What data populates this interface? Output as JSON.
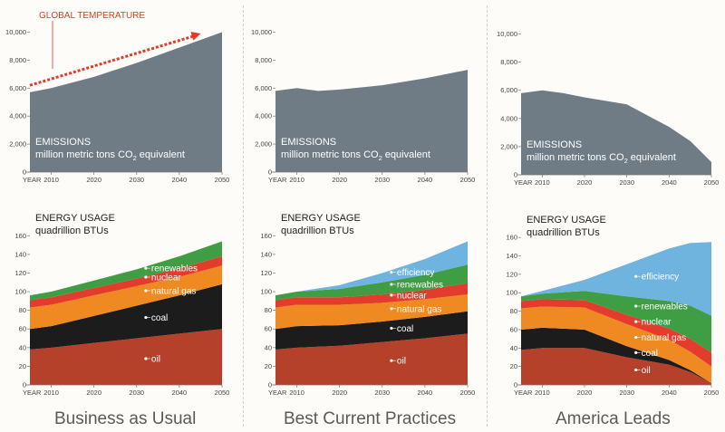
{
  "colors": {
    "emissions": "#6f7c86",
    "oil": "#b5412a",
    "coal": "#1c1c1c",
    "natural_gas": "#ef8a22",
    "nuclear": "#e33b2c",
    "renewables": "#3f9d44",
    "efficiency": "#6fb3df",
    "global_temperature": "#e23a27",
    "page_bg": "#fdfcf8"
  },
  "panels": [
    {
      "footer": "Business as Usual",
      "emissions": {
        "axis_x_word": "YEAR",
        "label_line1": "EMISSIONS",
        "label_line2_pre": "million metric tons CO",
        "label_line2_sub": "2",
        "label_line2_post": " equivalent",
        "annotation": "GLOBAL TEMPERATURE"
      },
      "energy": {
        "axis_x_word": "YEAR",
        "label_line1": "ENERGY USAGE",
        "label_line2": "quadrillion BTUs",
        "layer_labels": {
          "renewables": "renewables",
          "nuclear": "nuclear",
          "natural_gas": "natural gas",
          "coal": "coal",
          "oil": "oil"
        }
      }
    },
    {
      "footer": "Best Current Practices",
      "emissions": {
        "axis_x_word": "YEAR",
        "label_line1": "EMISSIONS",
        "label_line2_pre": "million metric tons CO",
        "label_line2_sub": "2",
        "label_line2_post": " equivalent"
      },
      "energy": {
        "axis_x_word": "YEAR",
        "label_line1": "ENERGY USAGE",
        "label_line2": "quadrillion BTUs",
        "layer_labels": {
          "efficiency": "efficiency",
          "renewables": "renewables",
          "nuclear": "nuclear",
          "natural_gas": "natural gas",
          "coal": "coal",
          "oil": "oil"
        }
      }
    },
    {
      "footer": "America Leads",
      "emissions": {
        "axis_x_word": "YEAR",
        "label_line1": "EMISSIONS",
        "label_line2_pre": "million metric tons CO",
        "label_line2_sub": "2",
        "label_line2_post": " equivalent"
      },
      "energy": {
        "axis_x_word": "YEAR",
        "label_line1": "ENERGY USAGE",
        "label_line2": "quadrillion BTUs",
        "layer_labels": {
          "efficiency": "efficiency",
          "renewables": "renewables",
          "nuclear": "nuclear",
          "natural_gas": "natural gas",
          "coal": "coal",
          "oil": "oil"
        }
      }
    }
  ],
  "chart_data": [
    {
      "type": "area",
      "panel": "Business as Usual",
      "metric": "emissions",
      "x": [
        2005,
        2010,
        2020,
        2030,
        2040,
        2050
      ],
      "series": [
        {
          "name": "EMISSIONS",
          "values": [
            5700,
            6000,
            6800,
            7800,
            8900,
            10000
          ]
        }
      ],
      "annotation_line": {
        "name": "GLOBAL TEMPERATURE",
        "x": [
          2005,
          2045
        ],
        "y": [
          6200,
          9900
        ]
      },
      "xticks": [
        2010,
        2020,
        2030,
        2040,
        2050
      ],
      "yticks": [
        0,
        2000,
        4000,
        6000,
        8000,
        10000
      ],
      "ytick_labels": [
        "0",
        "2,000",
        "4,000",
        "6,000",
        "8,000",
        "10,000"
      ],
      "ylim": [
        0,
        11000
      ],
      "xlim": [
        2005,
        2050
      ]
    },
    {
      "type": "area",
      "panel": "Best Current Practices",
      "metric": "emissions",
      "x": [
        2005,
        2010,
        2015,
        2020,
        2030,
        2040,
        2050
      ],
      "series": [
        {
          "name": "EMISSIONS",
          "values": [
            5800,
            6000,
            5800,
            5900,
            6200,
            6700,
            7300
          ]
        }
      ],
      "xticks": [
        2010,
        2020,
        2030,
        2040,
        2050
      ],
      "yticks": [
        0,
        2000,
        4000,
        6000,
        8000,
        10000
      ],
      "ytick_labels": [
        "0",
        "2,000",
        "4,000",
        "6,000",
        "8,000",
        "10,000"
      ],
      "ylim": [
        0,
        11000
      ],
      "xlim": [
        2005,
        2050
      ]
    },
    {
      "type": "area",
      "panel": "America Leads",
      "metric": "emissions",
      "x": [
        2005,
        2010,
        2015,
        2020,
        2030,
        2035,
        2040,
        2045,
        2050
      ],
      "series": [
        {
          "name": "EMISSIONS",
          "values": [
            5800,
            6000,
            5800,
            5500,
            5000,
            4200,
            3400,
            2400,
            900
          ]
        }
      ],
      "xticks": [
        2010,
        2020,
        2030,
        2040,
        2050
      ],
      "yticks": [
        0,
        2000,
        4000,
        6000,
        8000,
        10000
      ],
      "ytick_labels": [
        "0",
        "2,000",
        "4,000",
        "6,000",
        "8,000",
        "10,000"
      ],
      "ylim": [
        0,
        11000
      ],
      "xlim": [
        2005,
        2050
      ]
    },
    {
      "type": "area",
      "stacked": true,
      "panel": "Business as Usual",
      "metric": "energy",
      "x": [
        2005,
        2010,
        2020,
        2030,
        2040,
        2050
      ],
      "series": [
        {
          "name": "oil",
          "values": [
            38,
            40,
            45,
            50,
            55,
            60
          ]
        },
        {
          "name": "coal",
          "values": [
            22,
            23,
            29,
            35,
            41,
            48
          ]
        },
        {
          "name": "natural gas",
          "values": [
            23,
            23,
            22,
            21,
            20,
            20
          ]
        },
        {
          "name": "nuclear",
          "values": [
            8,
            8,
            8,
            8,
            9,
            10
          ]
        },
        {
          "name": "renewables",
          "values": [
            5,
            6,
            8,
            10,
            13,
            16
          ]
        }
      ],
      "xticks": [
        2010,
        2020,
        2030,
        2040,
        2050
      ],
      "yticks": [
        0,
        20,
        40,
        60,
        80,
        100,
        120,
        140,
        160
      ],
      "ylim": [
        0,
        170
      ],
      "xlim": [
        2005,
        2050
      ]
    },
    {
      "type": "area",
      "stacked": true,
      "panel": "Best Current Practices",
      "metric": "energy",
      "x": [
        2005,
        2010,
        2020,
        2030,
        2040,
        2050
      ],
      "series": [
        {
          "name": "oil",
          "values": [
            38,
            40,
            42,
            46,
            50,
            55
          ]
        },
        {
          "name": "coal",
          "values": [
            22,
            23,
            22,
            22,
            23,
            24
          ]
        },
        {
          "name": "natural gas",
          "values": [
            23,
            23,
            22,
            20,
            19,
            18
          ]
        },
        {
          "name": "nuclear",
          "values": [
            8,
            8,
            8,
            9,
            10,
            12
          ]
        },
        {
          "name": "renewables",
          "values": [
            5,
            6,
            9,
            13,
            16,
            20
          ]
        },
        {
          "name": "efficiency",
          "values": [
            0,
            0,
            4,
            10,
            17,
            25
          ]
        }
      ],
      "xticks": [
        2010,
        2020,
        2030,
        2040,
        2050
      ],
      "yticks": [
        0,
        20,
        40,
        60,
        80,
        100,
        120,
        140,
        160
      ],
      "ylim": [
        0,
        170
      ],
      "xlim": [
        2005,
        2050
      ]
    },
    {
      "type": "area",
      "stacked": true,
      "panel": "America Leads",
      "metric": "energy",
      "x": [
        2005,
        2010,
        2020,
        2030,
        2040,
        2045,
        2050
      ],
      "series": [
        {
          "name": "oil",
          "values": [
            38,
            40,
            40,
            30,
            22,
            14,
            2
          ]
        },
        {
          "name": "coal",
          "values": [
            22,
            22,
            20,
            12,
            5,
            2,
            0
          ]
        },
        {
          "name": "natural gas",
          "values": [
            23,
            23,
            24,
            24,
            22,
            20,
            18
          ]
        },
        {
          "name": "nuclear",
          "values": [
            8,
            8,
            8,
            10,
            12,
            14,
            15
          ]
        },
        {
          "name": "renewables",
          "values": [
            5,
            6,
            10,
            20,
            30,
            36,
            40
          ]
        },
        {
          "name": "efficiency",
          "values": [
            0,
            3,
            12,
            35,
            57,
            68,
            80
          ]
        }
      ],
      "xticks": [
        2010,
        2020,
        2030,
        2040,
        2050
      ],
      "yticks": [
        0,
        20,
        40,
        60,
        80,
        100,
        120,
        140,
        160
      ],
      "ylim": [
        0,
        170
      ],
      "xlim": [
        2005,
        2050
      ]
    }
  ]
}
